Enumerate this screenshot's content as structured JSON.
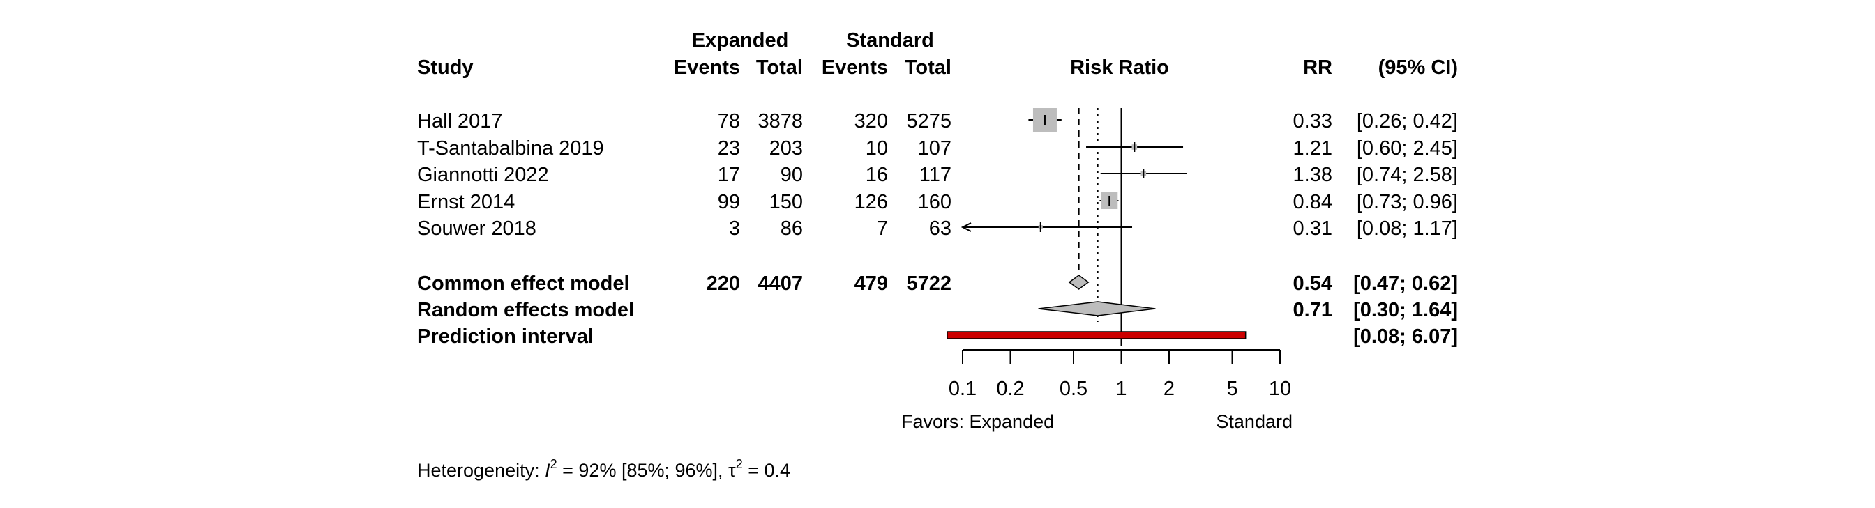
{
  "chart_data": {
    "type": "forest",
    "header": {
      "group1": "Expanded",
      "group2": "Standard",
      "study": "Study",
      "events": "Events",
      "total": "Total",
      "effect_title": "Risk Ratio",
      "rr": "RR",
      "ci": "(95% CI)"
    },
    "studies": [
      {
        "name": "Hall 2017",
        "e1": "78",
        "n1": "3878",
        "e2": "320",
        "n2": "5275",
        "rr": 0.33,
        "lo": 0.26,
        "hi": 0.42,
        "rr_text": "0.33",
        "ci_text": "[0.26; 0.42]",
        "weight": 1.0
      },
      {
        "name": "T-Santabalbina 2019",
        "e1": "23",
        "n1": "203",
        "e2": "10",
        "n2": "107",
        "rr": 1.21,
        "lo": 0.6,
        "hi": 2.45,
        "rr_text": "1.21",
        "ci_text": "[0.60; 2.45]",
        "weight": 0.05
      },
      {
        "name": "Giannotti 2022",
        "e1": "17",
        "n1": "90",
        "e2": "16",
        "n2": "117",
        "rr": 1.38,
        "lo": 0.74,
        "hi": 2.58,
        "rr_text": "1.38",
        "ci_text": "[0.74; 2.58]",
        "weight": 0.05
      },
      {
        "name": "Ernst 2014",
        "e1": "99",
        "n1": "150",
        "e2": "126",
        "n2": "160",
        "rr": 0.84,
        "lo": 0.73,
        "hi": 0.96,
        "rr_text": "0.84",
        "ci_text": "[0.73; 0.96]",
        "weight": 0.5
      },
      {
        "name": "Souwer 2018",
        "e1": "3",
        "n1": "86",
        "e2": "7",
        "n2": "63",
        "rr": 0.31,
        "lo": 0.08,
        "hi": 1.17,
        "rr_text": "0.31",
        "ci_text": "[0.08; 1.17]",
        "weight": 0.02
      }
    ],
    "common": {
      "name": "Common effect model",
      "e1": "220",
      "n1": "4407",
      "e2": "479",
      "n2": "5722",
      "rr": 0.54,
      "lo": 0.47,
      "hi": 0.62,
      "rr_text": "0.54",
      "ci_text": "[0.47; 0.62]"
    },
    "random": {
      "name": "Random effects model",
      "rr": 0.71,
      "lo": 0.3,
      "hi": 1.64,
      "rr_text": "0.71",
      "ci_text": "[0.30; 1.64]"
    },
    "prediction": {
      "name": "Prediction interval",
      "lo": 0.08,
      "hi": 6.07,
      "ci_text": "[0.08; 6.07]"
    },
    "xaxis": {
      "scale": "log",
      "ticks": [
        0.1,
        0.2,
        0.5,
        1,
        2,
        5,
        10
      ],
      "tick_labels": [
        "0.1",
        "0.2",
        "0.5",
        "1",
        "2",
        "5",
        "10"
      ],
      "range": [
        0.1,
        10
      ],
      "label_left": "Favors: Expanded",
      "label_right": "Standard"
    },
    "heterogeneity": {
      "prefix": "Heterogeneity: ",
      "i2_symbol": "I",
      "i2_sup": "2",
      "i2_value": " = 92% [85%; 96%], ",
      "tau_symbol": "τ",
      "tau_sup": "2",
      "tau_value": " = 0.4"
    },
    "colors": {
      "square": "#bdbdbd",
      "diamond": "#bdbdbd",
      "prediction": "#cc0000"
    }
  }
}
